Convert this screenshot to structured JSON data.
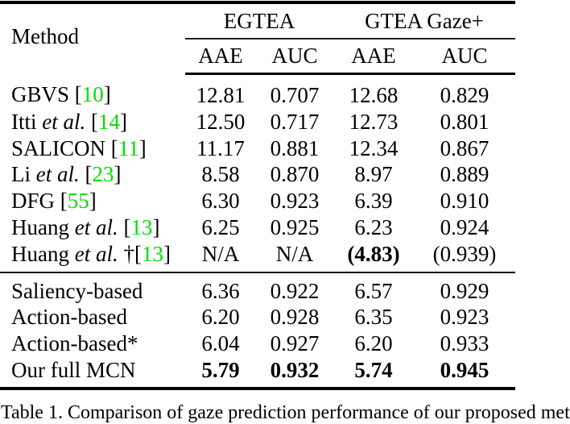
{
  "colors": {
    "citation_green": "#00E000"
  },
  "table": {
    "header": {
      "method_label": "Method",
      "group1": "EGTEA",
      "group2": "GTEA Gaze+",
      "sub": [
        "AAE",
        "AUC",
        "AAE",
        "AUC"
      ]
    },
    "rows": [
      {
        "pre": "GBVS ",
        "it": "",
        "mid": "[",
        "cite": "10",
        "post": "]",
        "v": [
          "12.81",
          "0.707",
          "12.68",
          "0.829"
        ]
      },
      {
        "pre": "Itti ",
        "it": "et al.",
        "mid": " [",
        "cite": "14",
        "post": "]",
        "v": [
          "12.50",
          "0.717",
          "12.73",
          "0.801"
        ]
      },
      {
        "pre": "SALICON ",
        "it": "",
        "mid": "[",
        "cite": "11",
        "post": "]",
        "v": [
          "11.17",
          "0.881",
          "12.34",
          "0.867"
        ]
      },
      {
        "pre": "Li ",
        "it": "et al.",
        "mid": " [",
        "cite": "23",
        "post": "]",
        "v": [
          "8.58",
          "0.870",
          "8.97",
          "0.889"
        ]
      },
      {
        "pre": "DFG ",
        "it": "",
        "mid": "[",
        "cite": "55",
        "post": "]",
        "v": [
          "6.30",
          "0.923",
          "6.39",
          "0.910"
        ]
      },
      {
        "pre": "Huang ",
        "it": "et al.",
        "mid": " [",
        "cite": "13",
        "post": "]",
        "v": [
          "6.25",
          "0.925",
          "6.23",
          "0.924"
        ]
      },
      {
        "pre": "Huang ",
        "it": "et al.",
        "mid": " †[",
        "cite": "13",
        "post": "]",
        "v": [
          "N/A",
          "N/A",
          "(4.83)",
          "(0.939)"
        ]
      },
      {
        "pre": "Saliency-based",
        "it": "",
        "mid": "",
        "cite": "",
        "post": "",
        "v": [
          "6.36",
          "0.922",
          "6.57",
          "0.929"
        ]
      },
      {
        "pre": "Action-based",
        "it": "",
        "mid": "",
        "cite": "",
        "post": "",
        "v": [
          "6.20",
          "0.928",
          "6.35",
          "0.923"
        ]
      },
      {
        "pre": "Action-based*",
        "it": "",
        "mid": "",
        "cite": "",
        "post": "",
        "v": [
          "6.04",
          "0.927",
          "6.20",
          "0.933"
        ]
      },
      {
        "pre": "Our full MCN",
        "it": "",
        "mid": "",
        "cite": "",
        "post": "",
        "v": [
          "5.79",
          "0.932",
          "5.74",
          "0.945"
        ]
      }
    ],
    "caption": "Table 1.  Comparison of gaze prediction performance of our proposed met"
  }
}
